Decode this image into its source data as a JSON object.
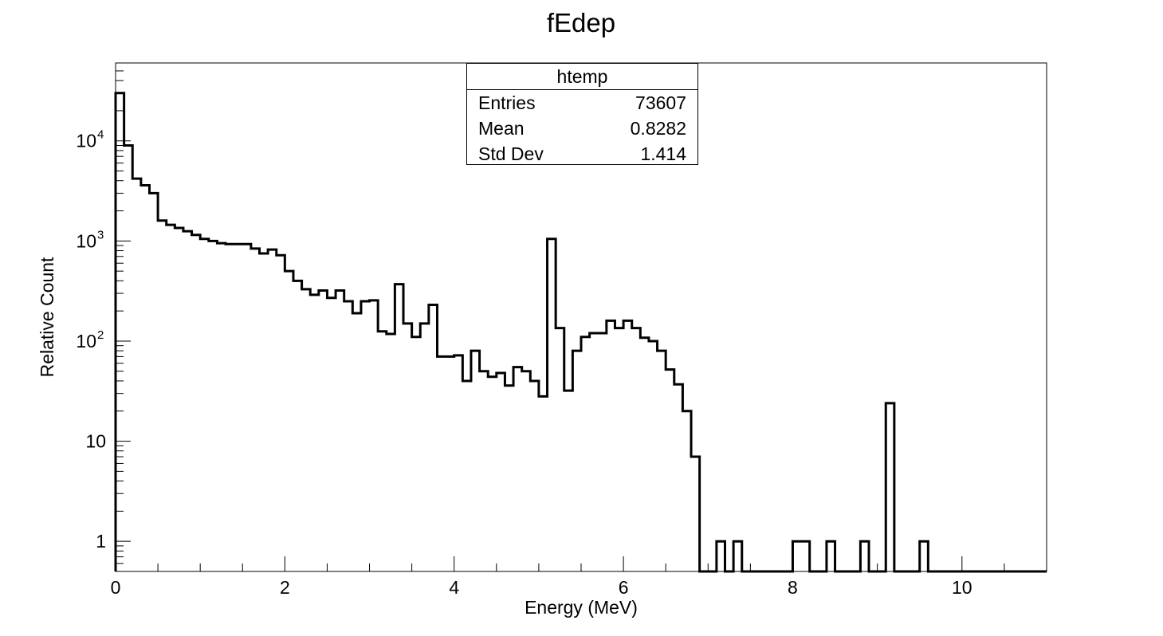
{
  "chart_data": {
    "type": "histogram",
    "title": "fEdep",
    "xlabel": "Energy (MeV)",
    "ylabel": "Relative Count",
    "xlim": [
      0,
      11
    ],
    "ylim": [
      0.5,
      60000
    ],
    "yscale": "log",
    "grid": false,
    "x_ticks": [
      "0",
      "2",
      "4",
      "6",
      "8",
      "10"
    ],
    "y_ticks": [
      {
        "value": 1,
        "label": "1"
      },
      {
        "value": 10,
        "label": "10"
      },
      {
        "value": 100,
        "label": "10",
        "exp": "2"
      },
      {
        "value": 1000,
        "label": "10",
        "exp": "3"
      },
      {
        "value": 10000,
        "label": "10",
        "exp": "4"
      }
    ],
    "bin_width": 0.1,
    "bin_start": 0,
    "values": [
      30000,
      9000,
      4200,
      3600,
      3000,
      1600,
      1450,
      1350,
      1250,
      1150,
      1050,
      1000,
      950,
      930,
      930,
      930,
      840,
      750,
      820,
      720,
      500,
      400,
      330,
      290,
      320,
      270,
      320,
      250,
      190,
      250,
      255,
      125,
      118,
      370,
      150,
      110,
      150,
      230,
      70,
      70,
      72,
      40,
      80,
      50,
      44,
      48,
      36,
      55,
      50,
      40,
      28,
      1050,
      135,
      32,
      80,
      110,
      120,
      120,
      160,
      135,
      160,
      135,
      108,
      100,
      80,
      52,
      37,
      20,
      7,
      0,
      0,
      1,
      0,
      1,
      0,
      0,
      0,
      0,
      0,
      0,
      1,
      1,
      0,
      0,
      1,
      0,
      0,
      0,
      1,
      0,
      0,
      24,
      0,
      0,
      0,
      1,
      0,
      0,
      0,
      0,
      0,
      0,
      0,
      0,
      0,
      0,
      0,
      0,
      0,
      0
    ]
  },
  "stats": {
    "name": "htemp",
    "entries_label": "Entries",
    "entries_value": "73607",
    "mean_label": "Mean",
    "mean_value": "0.8282",
    "stddev_label": "Std Dev",
    "stddev_value": "1.414"
  }
}
